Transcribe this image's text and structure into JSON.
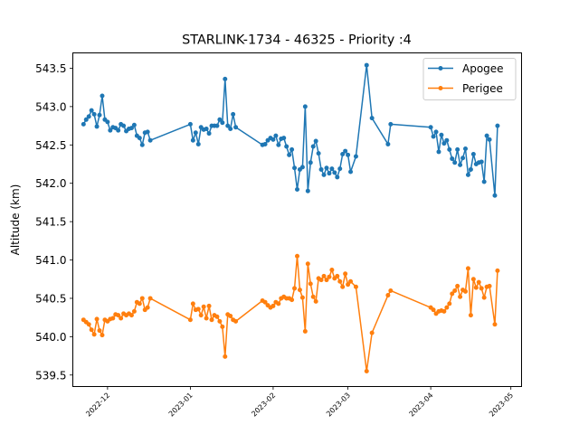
{
  "chart_data": {
    "type": "line",
    "title": "STARLINK-1734 - 46325 - Priority :4",
    "xlabel": "",
    "ylabel": "Altitude (km)",
    "x_axis": {
      "kind": "date",
      "range": [
        "2022-11-18",
        "2023-05-05"
      ],
      "ticks": [
        {
          "date": "2022-12-01",
          "label": "2022-12"
        },
        {
          "date": "2023-01-01",
          "label": "2023-01"
        },
        {
          "date": "2023-02-01",
          "label": "2023-02"
        },
        {
          "date": "2023-03-01",
          "label": "2023-03"
        },
        {
          "date": "2023-04-01",
          "label": "2023-04"
        },
        {
          "date": "2023-05-01",
          "label": "2023-05"
        }
      ]
    },
    "y_axis": {
      "range": [
        539.35,
        543.7
      ],
      "ticks": [
        539.5,
        540.0,
        540.5,
        541.0,
        541.5,
        542.0,
        542.5,
        543.0,
        543.5
      ],
      "tick_labels": [
        "539.5",
        "540.0",
        "540.5",
        "541.0",
        "541.5",
        "542.0",
        "542.5",
        "543.0",
        "543.5"
      ]
    },
    "grid": false,
    "legend": {
      "position": "top-right"
    },
    "series": [
      {
        "name": "Apogee",
        "color": "#1f77b4",
        "points": [
          [
            "2022-11-22",
            542.77
          ],
          [
            "2022-11-23",
            542.83
          ],
          [
            "2022-11-24",
            542.87
          ],
          [
            "2022-11-25",
            542.95
          ],
          [
            "2022-11-26",
            542.9
          ],
          [
            "2022-11-27",
            542.74
          ],
          [
            "2022-11-28",
            542.89
          ],
          [
            "2022-11-29",
            543.14
          ],
          [
            "2022-11-30",
            542.83
          ],
          [
            "2022-12-01",
            542.8
          ],
          [
            "2022-12-02",
            542.69
          ],
          [
            "2022-12-03",
            542.73
          ],
          [
            "2022-12-04",
            542.72
          ],
          [
            "2022-12-05",
            542.69
          ],
          [
            "2022-12-06",
            542.77
          ],
          [
            "2022-12-07",
            542.75
          ],
          [
            "2022-12-08",
            542.68
          ],
          [
            "2022-12-09",
            542.71
          ],
          [
            "2022-12-10",
            542.72
          ],
          [
            "2022-12-11",
            542.76
          ],
          [
            "2022-12-12",
            542.62
          ],
          [
            "2022-12-13",
            542.59
          ],
          [
            "2022-12-14",
            542.5
          ],
          [
            "2022-12-15",
            542.66
          ],
          [
            "2022-12-16",
            542.67
          ],
          [
            "2022-12-17",
            542.56
          ],
          [
            "2023-01-01",
            542.77
          ],
          [
            "2023-01-02",
            542.56
          ],
          [
            "2023-01-03",
            542.66
          ],
          [
            "2023-01-04",
            542.51
          ],
          [
            "2023-01-05",
            542.73
          ],
          [
            "2023-01-06",
            542.7
          ],
          [
            "2023-01-07",
            542.71
          ],
          [
            "2023-01-08",
            542.65
          ],
          [
            "2023-01-09",
            542.75
          ],
          [
            "2023-01-10",
            542.75
          ],
          [
            "2023-01-11",
            542.75
          ],
          [
            "2023-01-12",
            542.83
          ],
          [
            "2023-01-13",
            542.79
          ],
          [
            "2023-01-14",
            543.36
          ],
          [
            "2023-01-15",
            542.75
          ],
          [
            "2023-01-16",
            542.71
          ],
          [
            "2023-01-17",
            542.9
          ],
          [
            "2023-01-18",
            542.73
          ],
          [
            "2023-01-28",
            542.5
          ],
          [
            "2023-01-29",
            542.51
          ],
          [
            "2023-01-30",
            542.56
          ],
          [
            "2023-01-31",
            542.59
          ],
          [
            "2023-02-01",
            542.57
          ],
          [
            "2023-02-02",
            542.62
          ],
          [
            "2023-02-03",
            542.5
          ],
          [
            "2023-02-04",
            542.58
          ],
          [
            "2023-02-05",
            542.59
          ],
          [
            "2023-02-06",
            542.48
          ],
          [
            "2023-02-07",
            542.37
          ],
          [
            "2023-02-08",
            542.44
          ],
          [
            "2023-02-09",
            542.2
          ],
          [
            "2023-02-10",
            541.92
          ],
          [
            "2023-02-11",
            542.18
          ],
          [
            "2023-02-12",
            542.21
          ],
          [
            "2023-02-13",
            543.0
          ],
          [
            "2023-02-14",
            541.9
          ],
          [
            "2023-02-15",
            542.27
          ],
          [
            "2023-02-16",
            542.48
          ],
          [
            "2023-02-17",
            542.55
          ],
          [
            "2023-02-18",
            542.39
          ],
          [
            "2023-02-19",
            542.18
          ],
          [
            "2023-02-20",
            542.11
          ],
          [
            "2023-02-21",
            542.2
          ],
          [
            "2023-02-22",
            542.13
          ],
          [
            "2023-02-23",
            542.19
          ],
          [
            "2023-02-24",
            542.14
          ],
          [
            "2023-02-25",
            542.08
          ],
          [
            "2023-02-26",
            542.19
          ],
          [
            "2023-02-27",
            542.38
          ],
          [
            "2023-02-28",
            542.42
          ],
          [
            "2023-03-01",
            542.37
          ],
          [
            "2023-03-02",
            542.15
          ],
          [
            "2023-03-04",
            542.35
          ],
          [
            "2023-03-08",
            543.54
          ],
          [
            "2023-03-10",
            542.85
          ],
          [
            "2023-03-16",
            542.51
          ],
          [
            "2023-03-17",
            542.77
          ],
          [
            "2023-04-01",
            542.73
          ],
          [
            "2023-04-02",
            542.61
          ],
          [
            "2023-04-03",
            542.67
          ],
          [
            "2023-04-04",
            542.41
          ],
          [
            "2023-04-05",
            542.63
          ],
          [
            "2023-04-06",
            542.52
          ],
          [
            "2023-04-07",
            542.56
          ],
          [
            "2023-04-08",
            542.44
          ],
          [
            "2023-04-09",
            542.32
          ],
          [
            "2023-04-10",
            542.27
          ],
          [
            "2023-04-11",
            542.44
          ],
          [
            "2023-04-12",
            542.24
          ],
          [
            "2023-04-13",
            542.33
          ],
          [
            "2023-04-14",
            542.45
          ],
          [
            "2023-04-15",
            542.11
          ],
          [
            "2023-04-16",
            542.18
          ],
          [
            "2023-04-17",
            542.38
          ],
          [
            "2023-04-18",
            542.25
          ],
          [
            "2023-04-19",
            542.27
          ],
          [
            "2023-04-20",
            542.28
          ],
          [
            "2023-04-21",
            542.02
          ],
          [
            "2023-04-22",
            542.62
          ],
          [
            "2023-04-23",
            542.57
          ],
          [
            "2023-04-25",
            541.84
          ],
          [
            "2023-04-26",
            542.75
          ]
        ]
      },
      {
        "name": "Perigee",
        "color": "#ff7f0e",
        "points": [
          [
            "2022-11-22",
            540.22
          ],
          [
            "2022-11-23",
            540.19
          ],
          [
            "2022-11-24",
            540.16
          ],
          [
            "2022-11-25",
            540.09
          ],
          [
            "2022-11-26",
            540.03
          ],
          [
            "2022-11-27",
            540.23
          ],
          [
            "2022-11-28",
            540.08
          ],
          [
            "2022-11-29",
            540.02
          ],
          [
            "2022-11-30",
            540.22
          ],
          [
            "2022-12-01",
            540.2
          ],
          [
            "2022-12-02",
            540.23
          ],
          [
            "2022-12-03",
            540.24
          ],
          [
            "2022-12-04",
            540.29
          ],
          [
            "2022-12-05",
            540.28
          ],
          [
            "2022-12-06",
            540.24
          ],
          [
            "2022-12-07",
            540.3
          ],
          [
            "2022-12-08",
            540.28
          ],
          [
            "2022-12-09",
            540.3
          ],
          [
            "2022-12-10",
            540.28
          ],
          [
            "2022-12-11",
            540.33
          ],
          [
            "2022-12-12",
            540.45
          ],
          [
            "2022-12-13",
            540.43
          ],
          [
            "2022-12-14",
            540.5
          ],
          [
            "2022-12-15",
            540.35
          ],
          [
            "2022-12-16",
            540.38
          ],
          [
            "2022-12-17",
            540.5
          ],
          [
            "2023-01-01",
            540.22
          ],
          [
            "2023-01-02",
            540.43
          ],
          [
            "2023-01-03",
            540.35
          ],
          [
            "2023-01-04",
            540.36
          ],
          [
            "2023-01-05",
            540.28
          ],
          [
            "2023-01-06",
            540.39
          ],
          [
            "2023-01-07",
            540.24
          ],
          [
            "2023-01-08",
            540.4
          ],
          [
            "2023-01-09",
            540.22
          ],
          [
            "2023-01-10",
            540.28
          ],
          [
            "2023-01-11",
            540.26
          ],
          [
            "2023-01-12",
            540.2
          ],
          [
            "2023-01-13",
            540.13
          ],
          [
            "2023-01-14",
            539.74
          ],
          [
            "2023-01-15",
            540.29
          ],
          [
            "2023-01-16",
            540.27
          ],
          [
            "2023-01-17",
            540.22
          ],
          [
            "2023-01-18",
            540.2
          ],
          [
            "2023-01-28",
            540.47
          ],
          [
            "2023-01-29",
            540.45
          ],
          [
            "2023-01-30",
            540.41
          ],
          [
            "2023-01-31",
            540.38
          ],
          [
            "2023-02-01",
            540.4
          ],
          [
            "2023-02-02",
            540.45
          ],
          [
            "2023-02-03",
            540.43
          ],
          [
            "2023-02-04",
            540.5
          ],
          [
            "2023-02-05",
            540.52
          ],
          [
            "2023-02-06",
            540.5
          ],
          [
            "2023-02-07",
            540.5
          ],
          [
            "2023-02-08",
            540.48
          ],
          [
            "2023-02-09",
            540.63
          ],
          [
            "2023-02-10",
            541.05
          ],
          [
            "2023-02-11",
            540.61
          ],
          [
            "2023-02-12",
            540.51
          ],
          [
            "2023-02-13",
            540.07
          ],
          [
            "2023-02-14",
            540.95
          ],
          [
            "2023-02-15",
            540.69
          ],
          [
            "2023-02-16",
            540.52
          ],
          [
            "2023-02-17",
            540.46
          ],
          [
            "2023-02-18",
            540.76
          ],
          [
            "2023-02-19",
            540.74
          ],
          [
            "2023-02-20",
            540.79
          ],
          [
            "2023-02-21",
            540.74
          ],
          [
            "2023-02-22",
            540.78
          ],
          [
            "2023-02-23",
            540.87
          ],
          [
            "2023-02-24",
            540.76
          ],
          [
            "2023-02-25",
            540.79
          ],
          [
            "2023-02-26",
            540.72
          ],
          [
            "2023-02-27",
            540.65
          ],
          [
            "2023-02-28",
            540.82
          ],
          [
            "2023-03-01",
            540.68
          ],
          [
            "2023-03-02",
            540.72
          ],
          [
            "2023-03-04",
            540.65
          ],
          [
            "2023-03-08",
            539.55
          ],
          [
            "2023-03-10",
            540.05
          ],
          [
            "2023-03-16",
            540.54
          ],
          [
            "2023-03-17",
            540.6
          ],
          [
            "2023-04-01",
            540.38
          ],
          [
            "2023-04-02",
            540.35
          ],
          [
            "2023-04-03",
            540.3
          ],
          [
            "2023-04-04",
            540.33
          ],
          [
            "2023-04-05",
            540.34
          ],
          [
            "2023-04-06",
            540.33
          ],
          [
            "2023-04-07",
            540.38
          ],
          [
            "2023-04-08",
            540.43
          ],
          [
            "2023-04-09",
            540.56
          ],
          [
            "2023-04-10",
            540.6
          ],
          [
            "2023-04-11",
            540.66
          ],
          [
            "2023-04-12",
            540.52
          ],
          [
            "2023-04-13",
            540.61
          ],
          [
            "2023-04-14",
            540.59
          ],
          [
            "2023-04-15",
            540.89
          ],
          [
            "2023-04-16",
            540.28
          ],
          [
            "2023-04-17",
            540.75
          ],
          [
            "2023-04-18",
            540.64
          ],
          [
            "2023-04-19",
            540.71
          ],
          [
            "2023-04-20",
            540.63
          ],
          [
            "2023-04-21",
            540.51
          ],
          [
            "2023-04-22",
            540.65
          ],
          [
            "2023-04-23",
            540.66
          ],
          [
            "2023-04-25",
            540.16
          ],
          [
            "2023-04-26",
            540.86
          ]
        ]
      }
    ]
  }
}
